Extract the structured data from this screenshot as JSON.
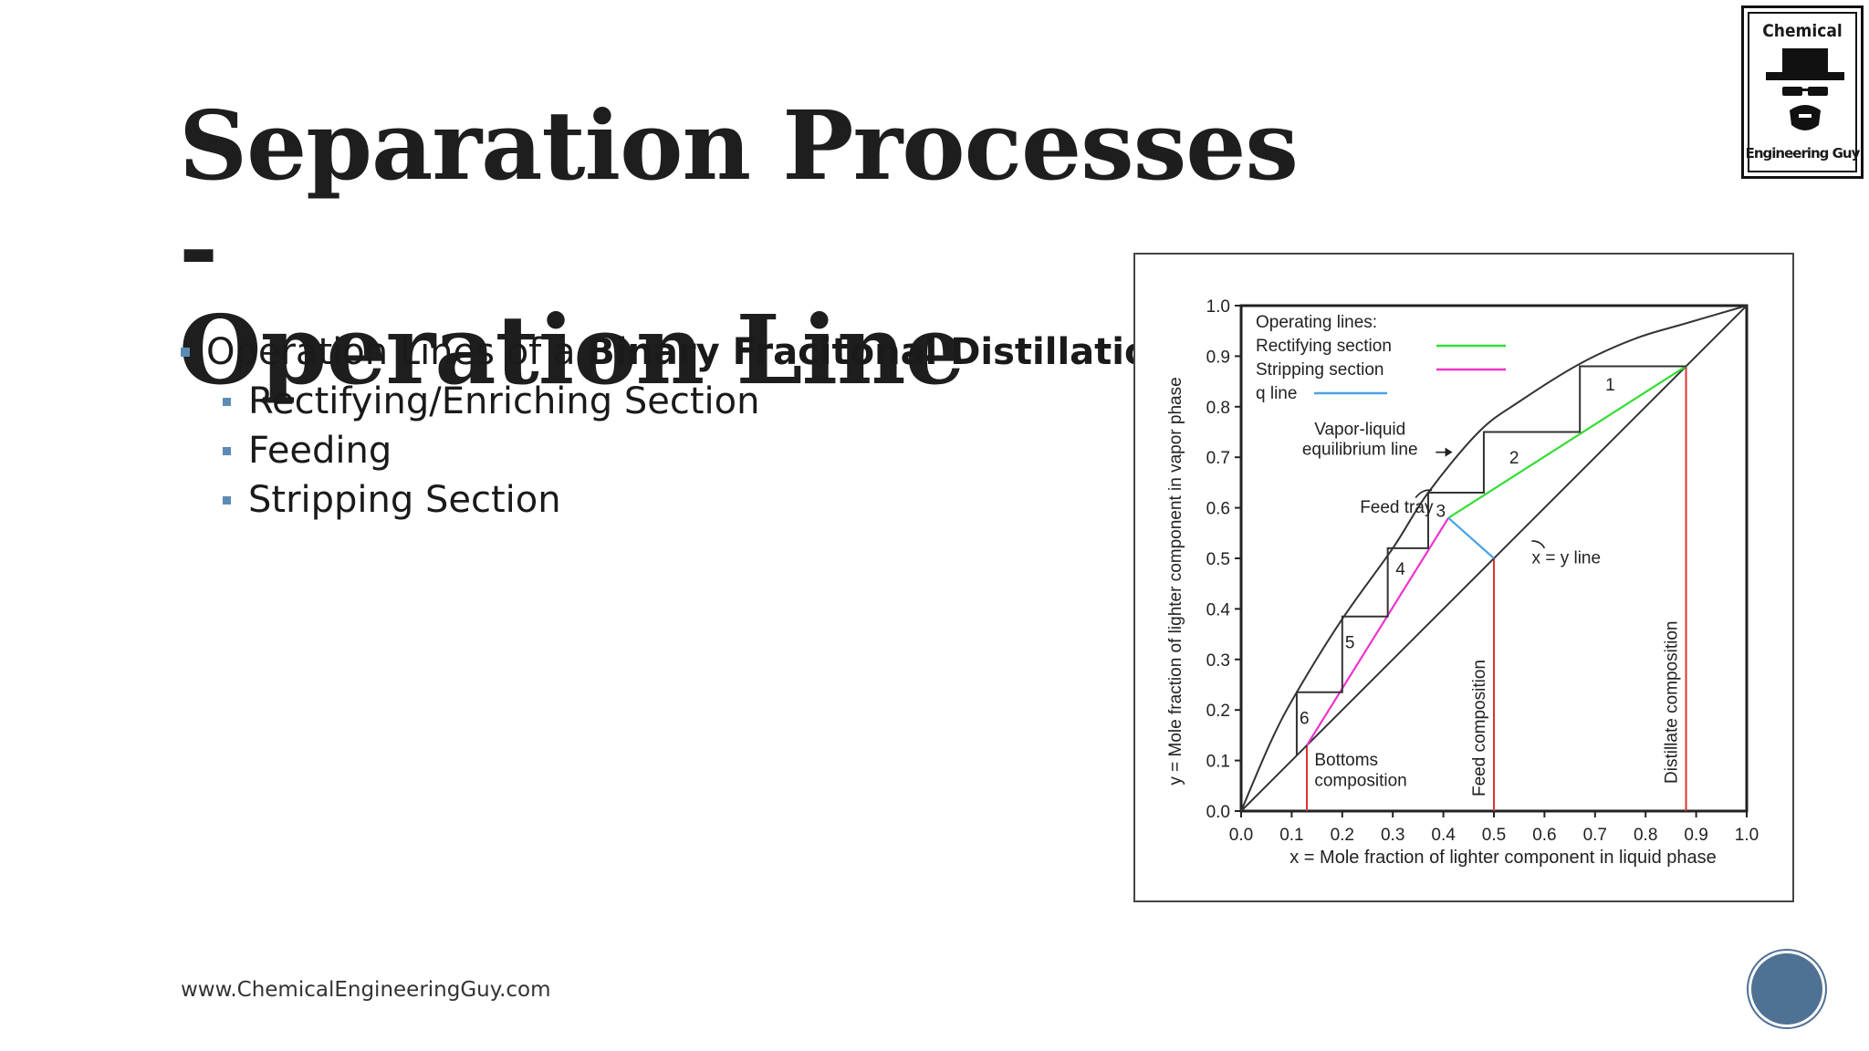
{
  "slide": {
    "title_line1": "Separation Processes -",
    "title_line2": "Operation Line",
    "bullets": [
      {
        "prefix": "Operation Lines of a ",
        "bold": "Binary Fracitonal Distillation"
      },
      {
        "text": "Rectifying/Enriching Section"
      },
      {
        "text": "Feeding"
      },
      {
        "text": "Stripping Section"
      }
    ],
    "footer": "www.ChemicalEngineeringGuy.com",
    "logo": {
      "top": "Chemical",
      "bottom": "Engineering Guy"
    },
    "accent_color": "#5b8bb4",
    "nav_button_color": "#4f7194"
  },
  "chart_data": {
    "type": "line",
    "xlabel": "x = Mole fraction of lighter component in liquid phase",
    "ylabel": "y = Mole fraction of lighter component in vapor phase",
    "xlim": [
      0,
      1
    ],
    "ylim": [
      0,
      1
    ],
    "x_ticks": [
      "0.0",
      "0.1",
      "0.2",
      "0.3",
      "0.4",
      "0.5",
      "0.6",
      "0.7",
      "0.8",
      "0.9",
      "1.0"
    ],
    "y_ticks": [
      "0.0",
      "0.1",
      "0.2",
      "0.3",
      "0.4",
      "0.5",
      "0.6",
      "0.7",
      "0.8",
      "0.9",
      "1.0"
    ],
    "legend": {
      "title": "Operating lines:",
      "placement": "top-left",
      "items": [
        {
          "label": "Rectifying section",
          "color": "#33dd33"
        },
        {
          "label": "Stripping section",
          "color": "#ee33cc"
        },
        {
          "label": "q line",
          "color": "#4aa3e6"
        }
      ]
    },
    "series": [
      {
        "key": "equilibrium",
        "color": "#333333",
        "x": [
          0,
          0.06,
          0.11,
          0.2,
          0.3,
          0.37,
          0.47,
          0.55,
          0.67,
          0.78,
          0.88,
          1.0
        ],
        "y": [
          0,
          0.14,
          0.235,
          0.38,
          0.52,
          0.63,
          0.75,
          0.81,
          0.885,
          0.935,
          0.965,
          1.0
        ]
      },
      {
        "key": "diagonal",
        "color": "#333333",
        "x": [
          0,
          1
        ],
        "y": [
          0,
          1
        ]
      },
      {
        "key": "rectifying",
        "color": "#33dd33",
        "x": [
          0.41,
          0.88
        ],
        "y": [
          0.58,
          0.88
        ]
      },
      {
        "key": "stripping",
        "color": "#ee33cc",
        "x": [
          0.13,
          0.41
        ],
        "y": [
          0.13,
          0.58
        ]
      },
      {
        "key": "q_line",
        "color": "#4aa3e6",
        "x": [
          0.41,
          0.5
        ],
        "y": [
          0.58,
          0.5
        ]
      }
    ],
    "stairs": {
      "color": "#333333",
      "points": [
        [
          0.88,
          0.88
        ],
        [
          0.67,
          0.88
        ],
        [
          0.67,
          0.75
        ],
        [
          0.48,
          0.75
        ],
        [
          0.48,
          0.63
        ],
        [
          0.37,
          0.63
        ],
        [
          0.37,
          0.52
        ],
        [
          0.29,
          0.52
        ],
        [
          0.29,
          0.385
        ],
        [
          0.2,
          0.385
        ],
        [
          0.2,
          0.235
        ],
        [
          0.11,
          0.235
        ],
        [
          0.11,
          0.11
        ]
      ]
    },
    "stage_labels": [
      {
        "text": "1",
        "x": 0.73,
        "y": 0.845
      },
      {
        "text": "2",
        "x": 0.54,
        "y": 0.7
      },
      {
        "text": "3",
        "x": 0.395,
        "y": 0.595
      },
      {
        "text": "4",
        "x": 0.315,
        "y": 0.48
      },
      {
        "text": "5",
        "x": 0.215,
        "y": 0.335
      },
      {
        "text": "6",
        "x": 0.125,
        "y": 0.185
      }
    ],
    "compositions": [
      {
        "key": "bottoms",
        "x": 0.13,
        "y_top": 0.13,
        "color": "#dd3333"
      },
      {
        "key": "feed",
        "x": 0.5,
        "y_top": 0.5,
        "color": "#dd3333"
      },
      {
        "key": "distillate",
        "x": 0.88,
        "y_top": 0.88,
        "color": "#dd3333"
      }
    ],
    "annotations": {
      "vle_line1": "Vapor-liquid",
      "vle_line2": "equilibrium line",
      "feed_tray": "Feed tray",
      "x_eq_y": "x = y  line",
      "bottoms1": "Bottoms",
      "bottoms2": "composition",
      "feed_comp": "Feed composition",
      "distillate_comp": "Distillate composition"
    }
  }
}
